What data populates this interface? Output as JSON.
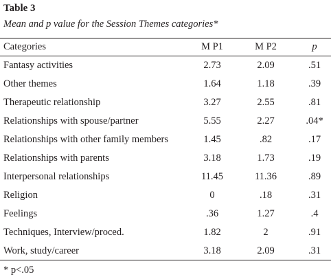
{
  "title": "Table 3",
  "subtitle": "Mean and p value for the Session Themes categories*",
  "table": {
    "header": [
      "Categories",
      "M P1",
      "M P2",
      "p"
    ],
    "rows": [
      [
        "Fantasy activities",
        "2.73",
        "2.09",
        ".51"
      ],
      [
        "Other themes",
        "1.64",
        "1.18",
        ".39"
      ],
      [
        "Therapeutic relationship",
        "3.27",
        "2.55",
        ".81"
      ],
      [
        "Relationships with spouse/partner",
        "5.55",
        "2.27",
        ".04*"
      ],
      [
        "Relationships with other family members",
        "1.45",
        ".82",
        ".17"
      ],
      [
        "Relationships with parents",
        "3.18",
        "1.73",
        ".19"
      ],
      [
        "Interpersonal relationships",
        "11.45",
        "11.36",
        ".89"
      ],
      [
        "Religion",
        "0",
        ".18",
        ".31"
      ],
      [
        "Feelings",
        ".36",
        "1.27",
        ".4"
      ],
      [
        "Techniques, Interview/proced.",
        "1.82",
        "2",
        ".91"
      ],
      [
        "Work, study/career",
        "3.18",
        "2.09",
        ".31"
      ]
    ]
  },
  "footnote": "* p<.05"
}
